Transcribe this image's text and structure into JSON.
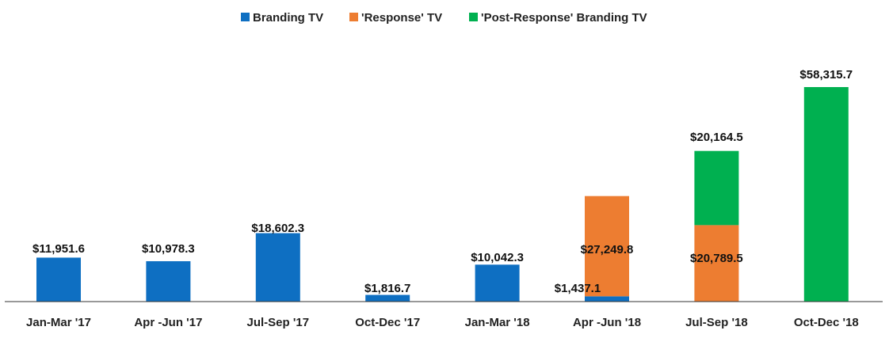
{
  "chart_data": {
    "type": "bar",
    "stacked": true,
    "title": "",
    "xlabel": "",
    "ylabel": "",
    "ylim": [
      0,
      58315.7
    ],
    "grid": false,
    "legend_position": "top-center",
    "categories": [
      "Jan-Mar '17",
      "Apr -Jun '17",
      "Jul-Sep '17",
      "Oct-Dec '17",
      "Jan-Mar '18",
      "Apr -Jun '18",
      "Jul-Sep '18",
      "Oct-Dec '18"
    ],
    "series": [
      {
        "name": "Branding TV",
        "color": "#0E6FC2",
        "values": [
          11951.6,
          10978.3,
          18602.3,
          1816.7,
          10042.3,
          1437.1,
          0,
          0
        ],
        "labels": [
          "$11,951.6",
          "$10,978.3",
          "$18,602.3",
          "$1,816.7",
          "$10,042.3",
          "$1,437.1",
          "",
          ""
        ]
      },
      {
        "name": "'Response' TV",
        "color": "#ED7D31",
        "values": [
          0,
          0,
          0,
          0,
          0,
          27249.8,
          20789.5,
          0
        ],
        "labels": [
          "",
          "",
          "",
          "",
          "",
          "$27,249.8",
          "$20,789.5",
          ""
        ]
      },
      {
        "name": "'Post-Response' Branding TV",
        "color": "#00B050",
        "values": [
          0,
          0,
          0,
          0,
          0,
          0,
          20164.5,
          58315.7
        ],
        "labels": [
          "",
          "",
          "",
          "",
          "",
          "",
          "$20,164.5",
          "$58,315.7"
        ]
      }
    ]
  }
}
